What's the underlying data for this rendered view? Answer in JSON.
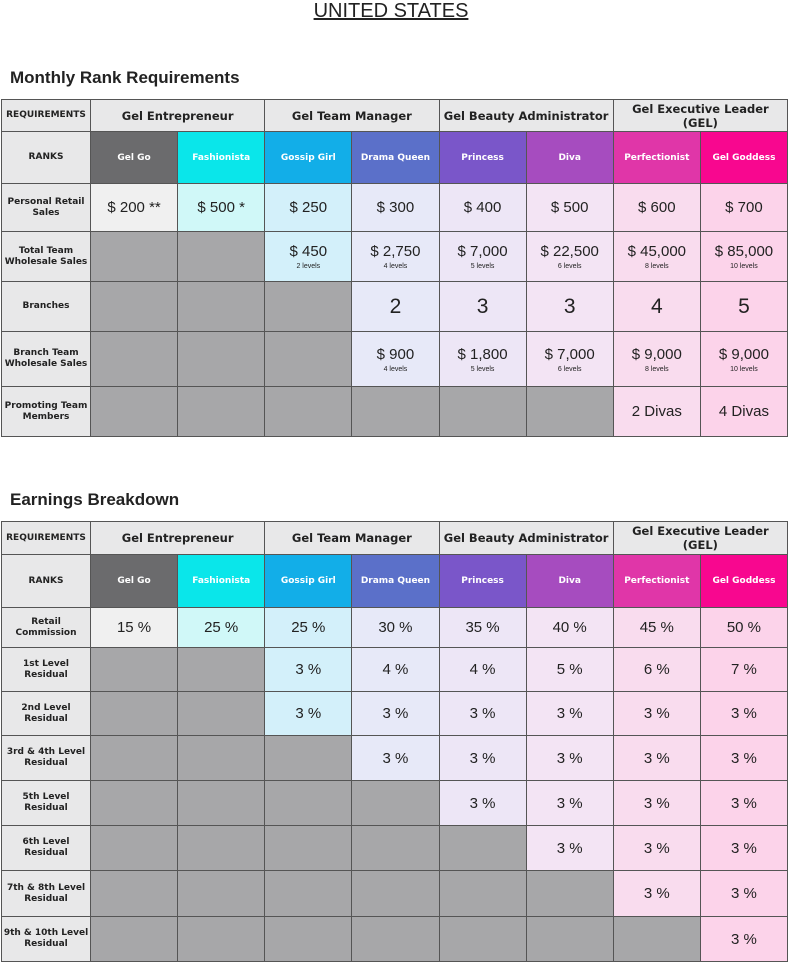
{
  "title": "UNITED STATES",
  "ranks": [
    "Gel Go",
    "Fashionista",
    "Gossip Girl",
    "Drama Queen",
    "Princess",
    "Diva",
    "Perfectionist",
    "Gel Goddess"
  ],
  "rank_colors": [
    "#6b6b6d",
    "#0ae6ea",
    "#12aee8",
    "#5b70c9",
    "#7a56c9",
    "#a64cbf",
    "#e036a8",
    "#f8078f"
  ],
  "tint_colors": [
    "#f0f0f0",
    "#d0f8f8",
    "#d3f0fa",
    "#e7e9f8",
    "#ede6f6",
    "#f3e4f4",
    "#f9dcee",
    "#fcd3ea"
  ],
  "groups": [
    "Gel Entrepreneur",
    "Gel Team Manager",
    "Gel Beauty Administrator",
    "Gel Executive Leader (GEL)"
  ],
  "requirements_label": "REQUIREMENTS",
  "ranks_label": "RANKS",
  "monthly": {
    "heading": "Monthly Rank Requirements",
    "rows": [
      {
        "label": "Personal Retail Sales",
        "cells": [
          {
            "v": "$ 200 **"
          },
          {
            "v": "$ 500 *"
          },
          {
            "v": "$ 250"
          },
          {
            "v": "$ 300"
          },
          {
            "v": "$ 400"
          },
          {
            "v": "$ 500"
          },
          {
            "v": "$ 600"
          },
          {
            "v": "$ 700"
          }
        ]
      },
      {
        "label": "Total Team Wholesale Sales",
        "cells": [
          null,
          null,
          {
            "v": "$ 450",
            "s": "2 levels"
          },
          {
            "v": "$ 2,750",
            "s": "4 levels"
          },
          {
            "v": "$ 7,000",
            "s": "5 levels"
          },
          {
            "v": "$ 22,500",
            "s": "6 levels"
          },
          {
            "v": "$ 45,000",
            "s": "8 levels"
          },
          {
            "v": "$ 85,000",
            "s": "10 levels"
          }
        ]
      },
      {
        "label": "Branches",
        "big": true,
        "cells": [
          null,
          null,
          null,
          {
            "v": "2"
          },
          {
            "v": "3"
          },
          {
            "v": "3"
          },
          {
            "v": "4"
          },
          {
            "v": "5"
          }
        ]
      },
      {
        "label": "Branch Team Wholesale Sales",
        "cells": [
          null,
          null,
          null,
          {
            "v": "$ 900",
            "s": "4 levels"
          },
          {
            "v": "$ 1,800",
            "s": "5 levels"
          },
          {
            "v": "$ 7,000",
            "s": "6 levels"
          },
          {
            "v": "$ 9,000",
            "s": "8 levels"
          },
          {
            "v": "$ 9,000",
            "s": "10 levels"
          }
        ]
      },
      {
        "label": "Promoting Team Members",
        "cells": [
          null,
          null,
          null,
          null,
          null,
          null,
          {
            "v": "2 Divas"
          },
          {
            "v": "4 Divas"
          }
        ]
      }
    ]
  },
  "earnings": {
    "heading": "Earnings Breakdown",
    "rows": [
      {
        "label": "Retail Commission",
        "cells": [
          {
            "v": "15 %"
          },
          {
            "v": "25 %"
          },
          {
            "v": "25 %"
          },
          {
            "v": "30 %"
          },
          {
            "v": "35 %"
          },
          {
            "v": "40 %"
          },
          {
            "v": "45 %"
          },
          {
            "v": "50 %"
          }
        ]
      },
      {
        "label": "1st Level Residual",
        "cells": [
          null,
          null,
          {
            "v": "3 %"
          },
          {
            "v": "4 %"
          },
          {
            "v": "4 %"
          },
          {
            "v": "5 %"
          },
          {
            "v": "6 %"
          },
          {
            "v": "7 %"
          }
        ]
      },
      {
        "label": "2nd Level Residual",
        "cells": [
          null,
          null,
          {
            "v": "3 %"
          },
          {
            "v": "3 %"
          },
          {
            "v": "3 %"
          },
          {
            "v": "3 %"
          },
          {
            "v": "3 %"
          },
          {
            "v": "3 %"
          }
        ]
      },
      {
        "label": "3rd & 4th Level Residual",
        "cells": [
          null,
          null,
          null,
          {
            "v": "3 %"
          },
          {
            "v": "3 %"
          },
          {
            "v": "3 %"
          },
          {
            "v": "3 %"
          },
          {
            "v": "3 %"
          }
        ]
      },
      {
        "label": "5th Level Residual",
        "cells": [
          null,
          null,
          null,
          null,
          {
            "v": "3 %"
          },
          {
            "v": "3 %"
          },
          {
            "v": "3 %"
          },
          {
            "v": "3 %"
          }
        ]
      },
      {
        "label": "6th Level Residual",
        "cells": [
          null,
          null,
          null,
          null,
          null,
          {
            "v": "3 %"
          },
          {
            "v": "3 %"
          },
          {
            "v": "3 %"
          }
        ]
      },
      {
        "label": "7th & 8th Level Residual",
        "cells": [
          null,
          null,
          null,
          null,
          null,
          null,
          {
            "v": "3 %"
          },
          {
            "v": "3 %"
          }
        ]
      },
      {
        "label": "9th & 10th Level Residual",
        "cells": [
          null,
          null,
          null,
          null,
          null,
          null,
          null,
          {
            "v": "3 %"
          }
        ]
      }
    ]
  }
}
